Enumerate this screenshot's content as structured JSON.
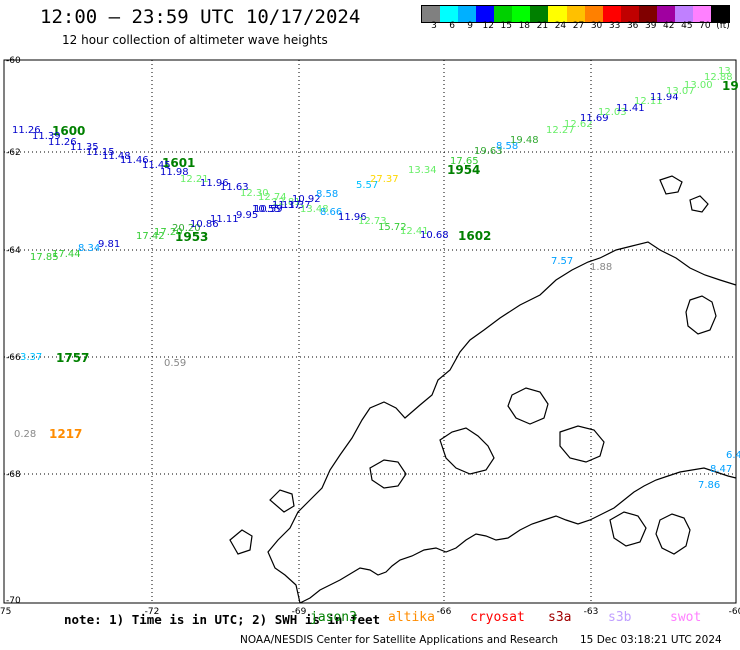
{
  "title": "12:00 — 23:59 UTC 10/17/2024",
  "subtitle": "12 hour collection of altimeter wave heights",
  "colorbar": {
    "colors": [
      "#808080",
      "#00ffff",
      "#00b0ff",
      "#0000ff",
      "#00d000",
      "#00ff00",
      "#008000",
      "#ffff00",
      "#ffc000",
      "#ff8000",
      "#ff0000",
      "#c00000",
      "#800000",
      "#a000a0",
      "#c080ff",
      "#ff80ff",
      "#000000"
    ],
    "ticks": [
      "3",
      "6",
      "9",
      "12",
      "15",
      "18",
      "21",
      "24",
      "27",
      "30",
      "33",
      "36",
      "39",
      "42",
      "45",
      "70",
      "(ft)"
    ]
  },
  "lat_labels": [
    "-60",
    "-62",
    "-64",
    "-66",
    "-68",
    "-70"
  ],
  "lon_labels": [
    "-75",
    "-72",
    "-69",
    "-66",
    "-63",
    "-60"
  ],
  "tracks": [
    {
      "id": "1600",
      "color": "#008000"
    },
    {
      "id": "1601",
      "color": "#008000"
    },
    {
      "id": "1953",
      "color": "#008000"
    },
    {
      "id": "1954",
      "color": "#008000"
    },
    {
      "id": "1602",
      "color": "#008000"
    },
    {
      "id": "19",
      "color": "#008000"
    },
    {
      "id": "1757",
      "color": "#008000"
    },
    {
      "id": "1217",
      "color": "#ff8c00"
    }
  ],
  "heights": [
    {
      "v": "11.26",
      "c": "#0000cc"
    },
    {
      "v": "11.39",
      "c": "#0000cc"
    },
    {
      "v": "11.26",
      "c": "#0000cc"
    },
    {
      "v": "11.35",
      "c": "#0000cc"
    },
    {
      "v": "11.15",
      "c": "#0000cc"
    },
    {
      "v": "11.48",
      "c": "#0000cc"
    },
    {
      "v": "11.46",
      "c": "#0000cc"
    },
    {
      "v": "11.45",
      "c": "#0000cc"
    },
    {
      "v": "11.98",
      "c": "#0000cc"
    },
    {
      "v": "11.96",
      "c": "#0000cc"
    },
    {
      "v": "11.63",
      "c": "#0000cc"
    },
    {
      "v": "12.30",
      "c": "#66ee66"
    },
    {
      "v": "12.21",
      "c": "#66ee66"
    },
    {
      "v": "12.74",
      "c": "#66ee66"
    },
    {
      "v": "12.81",
      "c": "#66ee66"
    },
    {
      "v": "10.92",
      "c": "#0000cc"
    },
    {
      "v": "10.55",
      "c": "#0000cc"
    },
    {
      "v": "11.37",
      "c": "#0000cc"
    },
    {
      "v": "8.58",
      "c": "#00a0ff"
    },
    {
      "v": "5.57",
      "c": "#00c0ff"
    },
    {
      "v": "27.37",
      "c": "#ffd700"
    },
    {
      "v": "13.34",
      "c": "#66ee66"
    },
    {
      "v": "17.65",
      "c": "#33cc33"
    },
    {
      "v": "19.63",
      "c": "#33aa33"
    },
    {
      "v": "8.58",
      "c": "#00a0ff"
    },
    {
      "v": "19.48",
      "c": "#33aa33"
    },
    {
      "v": "12.27",
      "c": "#66ee66"
    },
    {
      "v": "12.62",
      "c": "#66ee66"
    },
    {
      "v": "11.69",
      "c": "#0000cc"
    },
    {
      "v": "12.03",
      "c": "#66ee66"
    },
    {
      "v": "11.41",
      "c": "#0000cc"
    },
    {
      "v": "12.11",
      "c": "#66ee66"
    },
    {
      "v": "11.94",
      "c": "#0000cc"
    },
    {
      "v": "13.07",
      "c": "#66ee66"
    },
    {
      "v": "13.00",
      "c": "#66ee66"
    },
    {
      "v": "12.88",
      "c": "#66ee66"
    },
    {
      "v": "13",
      "c": "#66ee66"
    },
    {
      "v": "17.85",
      "c": "#33cc33"
    },
    {
      "v": "17.44",
      "c": "#33cc33"
    },
    {
      "v": "8.34",
      "c": "#00a0ff"
    },
    {
      "v": "9.81",
      "c": "#0000cc"
    },
    {
      "v": "17.42",
      "c": "#33cc33"
    },
    {
      "v": "17.20",
      "c": "#33cc33"
    },
    {
      "v": "20.20",
      "c": "#33aa33"
    },
    {
      "v": "10.86",
      "c": "#0000cc"
    },
    {
      "v": "11.11",
      "c": "#0000cc"
    },
    {
      "v": "9.95",
      "c": "#0000cc"
    },
    {
      "v": "10.59",
      "c": "#0000cc"
    },
    {
      "v": "11.37",
      "c": "#0000cc"
    },
    {
      "v": "13.48",
      "c": "#66ee66"
    },
    {
      "v": "8.66",
      "c": "#00a0ff"
    },
    {
      "v": "11.96",
      "c": "#0000cc"
    },
    {
      "v": "12.73",
      "c": "#66ee66"
    },
    {
      "v": "15.72",
      "c": "#33cc33"
    },
    {
      "v": "12.41",
      "c": "#66ee66"
    },
    {
      "v": "10.68",
      "c": "#0000cc"
    },
    {
      "v": "3.37",
      "c": "#00c0ff"
    },
    {
      "v": "0.59",
      "c": "#888888"
    },
    {
      "v": "0.28",
      "c": "#888888"
    },
    {
      "v": "7.57",
      "c": "#00a0ff"
    },
    {
      "v": "1.88",
      "c": "#888888"
    },
    {
      "v": "6.4",
      "c": "#00a0ff"
    },
    {
      "v": "8.47",
      "c": "#00a0ff"
    },
    {
      "v": "7.86",
      "c": "#00a0ff"
    }
  ],
  "note": "note: 1) Time is in UTC; 2) SWH is in feet",
  "satellites": [
    {
      "name": "jason3",
      "color": "#008000"
    },
    {
      "name": "altika",
      "color": "#ff8c00"
    },
    {
      "name": "cryosat",
      "color": "#ff0000"
    },
    {
      "name": "s3a",
      "color": "#a00000"
    },
    {
      "name": "s3b",
      "color": "#c0a0ff"
    },
    {
      "name": "swot",
      "color": "#ff80ff"
    }
  ],
  "footer": "NOAA/NESDIS Center for Satellite Applications and Research",
  "footer_timestamp": "15 Dec 03:18:21 UTC 2024"
}
